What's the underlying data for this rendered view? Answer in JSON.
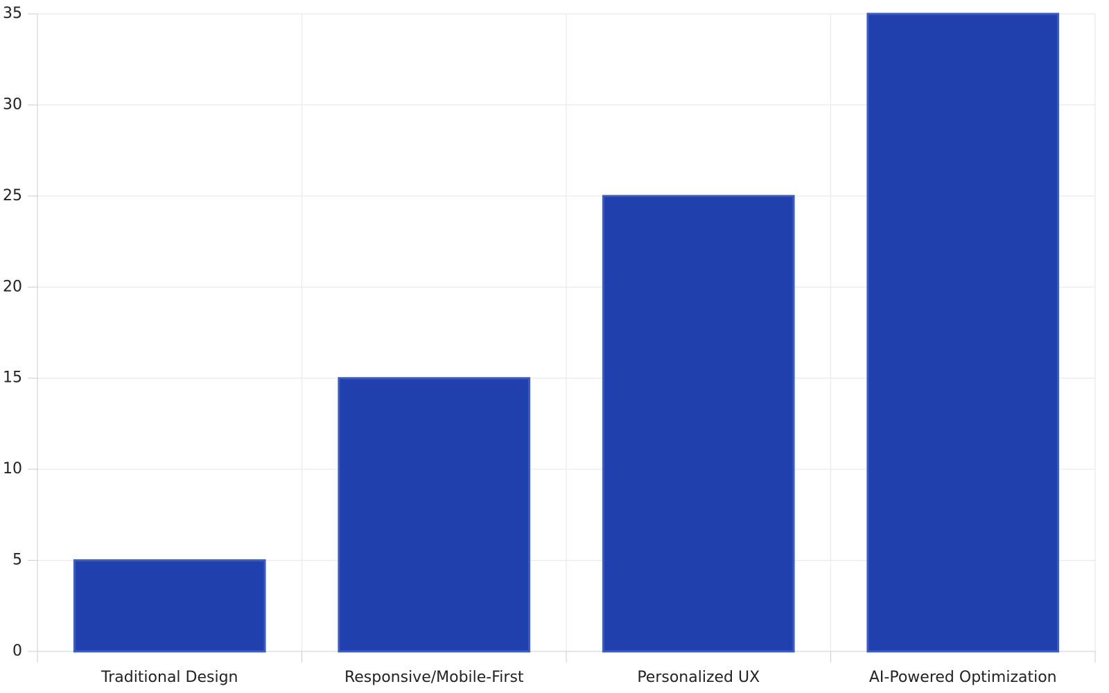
{
  "chart_data": {
    "type": "bar",
    "categories": [
      "Traditional Design",
      "Responsive/Mobile-First",
      "Personalized UX",
      "AI-Powered Optimization"
    ],
    "values": [
      5,
      15,
      25,
      35
    ],
    "color": "#1f40ad",
    "ylim": [
      0,
      35
    ],
    "yticks": [
      0,
      5,
      10,
      15,
      20,
      25,
      30,
      35
    ],
    "grid": true
  }
}
